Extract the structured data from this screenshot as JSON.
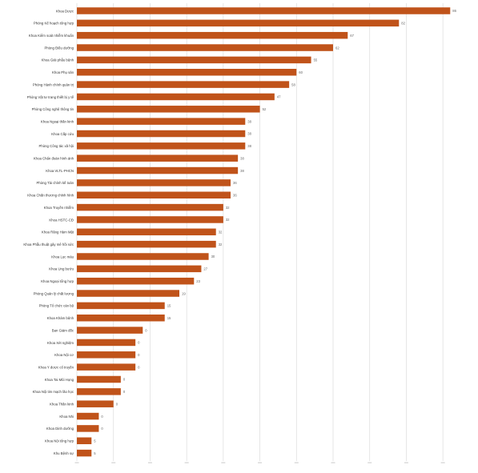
{
  "chart_data": {
    "type": "bar",
    "orientation": "horizontal",
    "title": "",
    "xlabel": "",
    "ylabel": "",
    "grid": true,
    "bar_color": "#C0531A",
    "xlim": [
      0,
      105
    ],
    "xticks": [
      0,
      10,
      20,
      30,
      40,
      50,
      60,
      70,
      80,
      90,
      100
    ],
    "categories": [
      "Khoa Dược",
      "Phòng Kế hoạch tổng hợp",
      "Khoa Kiểm soát nhiễm khuẩn",
      "Phòng Điều dưỡng",
      "Khoa Giải phẫu bệnh",
      "Khoa Phụ sản",
      "Phòng Hành chính quản trị",
      "Phòng Vật tư trang thiết bị y tế",
      "Phòng Công nghệ thông tin",
      "Khoa Ngoại thần kinh",
      "Khoa Cấp cứu",
      "Phòng Công tác xã hội",
      "Khoa Chẩn đoán hình ảnh",
      "Khoa VLTL-PHCN",
      "Phòng Tài chính kế toán",
      "Khoa Chấn thương chỉnh hình",
      "Khoa Truyền nhiễm",
      "Khoa HSTC-CĐ",
      "Khoa Răng Hàm Mặt",
      "Khoa Phẫu thuật gây mê hồi sức",
      "Khoa Lọc máu",
      "Khoa Ung bướu",
      "Khoa Ngoại tổng hợp",
      "Phòng Quản lý chất lượng",
      "Phòng Tổ chức cán bộ",
      "Khoa Khám bệnh",
      "Ban Giám đốc",
      "Khoa Xét nghiệm",
      "Khoa Nội cơ",
      "Khoa Y dược cổ truyền",
      "Khoa Tai Mũi Họng",
      "Khoa Nội tim mạch lão học",
      "Khoa Thần kinh",
      "Khoa Nhi",
      "Khoa Dinh dưỡng",
      "Khoa Nội tổng hợp",
      "Khu Bệnh sự"
    ],
    "values": [
      102,
      88,
      74,
      70,
      64,
      60,
      58,
      54,
      50,
      46,
      46,
      46,
      44,
      44,
      42,
      42,
      40,
      40,
      38,
      38,
      36,
      34,
      32,
      28,
      24,
      24,
      18,
      16,
      16,
      16,
      12,
      12,
      10,
      6,
      6,
      4,
      4
    ],
    "data_labels": [
      "86",
      "82",
      "67",
      "62",
      "55",
      "60",
      "58",
      "47",
      "52",
      "38",
      "38",
      "38",
      "38",
      "38",
      "36",
      "36",
      "32",
      "32",
      "32",
      "32",
      "30",
      "27",
      "23",
      "19",
      "15",
      "15",
      "0",
      "0",
      "0",
      "0",
      "0",
      "0",
      "0",
      "0",
      "0",
      "5",
      "5"
    ]
  }
}
